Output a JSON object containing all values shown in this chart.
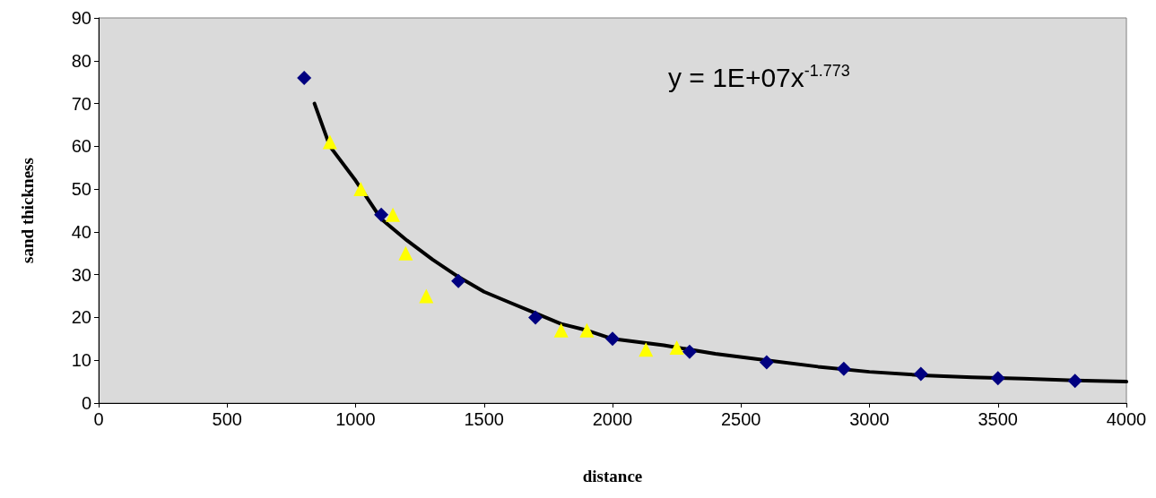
{
  "chart_data": {
    "type": "scatter",
    "xlabel": "distance",
    "ylabel": "sand thickness",
    "xlim": [
      0,
      4000
    ],
    "xticks": [
      0,
      500,
      1000,
      1500,
      2000,
      2500,
      3000,
      3500,
      4000
    ],
    "ylim": [
      0,
      90
    ],
    "yticks": [
      0,
      10,
      20,
      30,
      40,
      50,
      60,
      70,
      80,
      90
    ],
    "grid": false,
    "annotations": [
      "y = 1E+07x$^{-1.773}$"
    ],
    "series": [
      {
        "color": "#000080",
        "marker": "diamond",
        "x": [
          800,
          1100,
          1400,
          1700,
          2000,
          2300,
          2600,
          2900,
          3200,
          3500,
          3800
        ],
        "values": [
          76,
          44,
          28.5,
          20,
          15,
          12,
          9.5,
          8,
          6.8,
          5.8,
          5.2
        ]
      },
      {
        "color": "#ffff00",
        "marker": "triangle",
        "x": [
          900,
          1020,
          1145,
          1195,
          1275,
          1800,
          1900,
          2130,
          2250
        ],
        "values": [
          61,
          50,
          44,
          35,
          25,
          17,
          17,
          12.5,
          13
        ]
      },
      {
        "type": "line",
        "color": "#000000",
        "marker": "none",
        "line_style": "solid",
        "x": [
          840,
          900,
          1000,
          1100,
          1200,
          1300,
          1400,
          1500,
          1600,
          1700,
          1800,
          1900,
          2000,
          2200,
          2400,
          2600,
          2800,
          3000,
          3200,
          3400,
          3600,
          3800,
          4000
        ],
        "values": [
          70,
          60,
          52,
          43,
          38,
          33.5,
          29.5,
          26,
          23.5,
          21,
          18.5,
          17,
          15,
          13.5,
          11.5,
          10,
          8.5,
          7.3,
          6.5,
          6,
          5.7,
          5.3,
          5
        ]
      }
    ]
  }
}
